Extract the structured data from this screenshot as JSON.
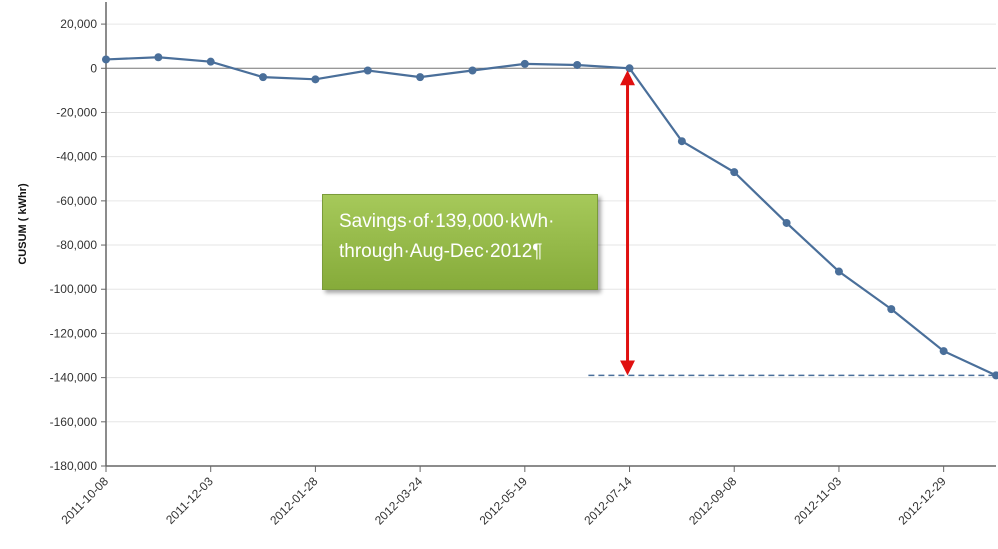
{
  "chart_data": {
    "type": "line",
    "title": "",
    "ylabel": "CUSUM ( kWhr)",
    "xlabel": "",
    "ylim": [
      -180000,
      30000
    ],
    "yticks": [
      20000,
      0,
      -20000,
      -40000,
      -60000,
      -80000,
      -100000,
      -120000,
      -140000,
      -160000,
      -180000
    ],
    "ytick_labels": [
      "20,000",
      "0",
      "-20,000",
      "-40,000",
      "-60,000",
      "-80,000",
      "-100,000",
      "-120,000",
      "-140,000",
      "-160,000",
      "-180,000"
    ],
    "xlim": [
      "2011-10-08",
      "2013-01-26"
    ],
    "xticks": [
      "2011-10-08",
      "2011-12-03",
      "2012-01-28",
      "2012-03-24",
      "2012-05-19",
      "2012-07-14",
      "2012-09-08",
      "2012-11-03",
      "2012-12-29"
    ],
    "grid": true,
    "legend": "none",
    "series": [
      {
        "color": "#4a6f9a",
        "x": [
          "2011-10-08",
          "2011-11-05",
          "2011-12-03",
          "2011-12-31",
          "2012-01-28",
          "2012-02-25",
          "2012-03-24",
          "2012-04-21",
          "2012-05-19",
          "2012-06-16",
          "2012-07-14",
          "2012-08-11",
          "2012-09-08",
          "2012-10-06",
          "2012-11-03",
          "2012-12-01",
          "2012-12-29",
          "2013-01-26"
        ],
        "values": [
          4000,
          5000,
          3000,
          -4000,
          -5000,
          -1000,
          -4000,
          -1000,
          2000,
          1500,
          0,
          -33000,
          -47000,
          -70000,
          -92000,
          -109000,
          -128000,
          -139000
        ]
      }
    ],
    "reference_line": {
      "y": -139000,
      "x_start": "2012-06-22",
      "x_end": "2013-01-26",
      "style": "dashed",
      "color": "#4a6f9a"
    },
    "annotation_arrow": {
      "x": "2012-07-14",
      "y_from": 0,
      "y_to": -139000,
      "color": "#e01010"
    },
    "callout": {
      "line1": "Savings·of·139,000·kWh·",
      "line2": "through·Aug-Dec·2012¶",
      "background": "#95ba4a"
    },
    "colors": {
      "axis": "#666666",
      "grid": "#e6e6e6",
      "series": "#4a6f9a",
      "arrow": "#e01010"
    }
  }
}
